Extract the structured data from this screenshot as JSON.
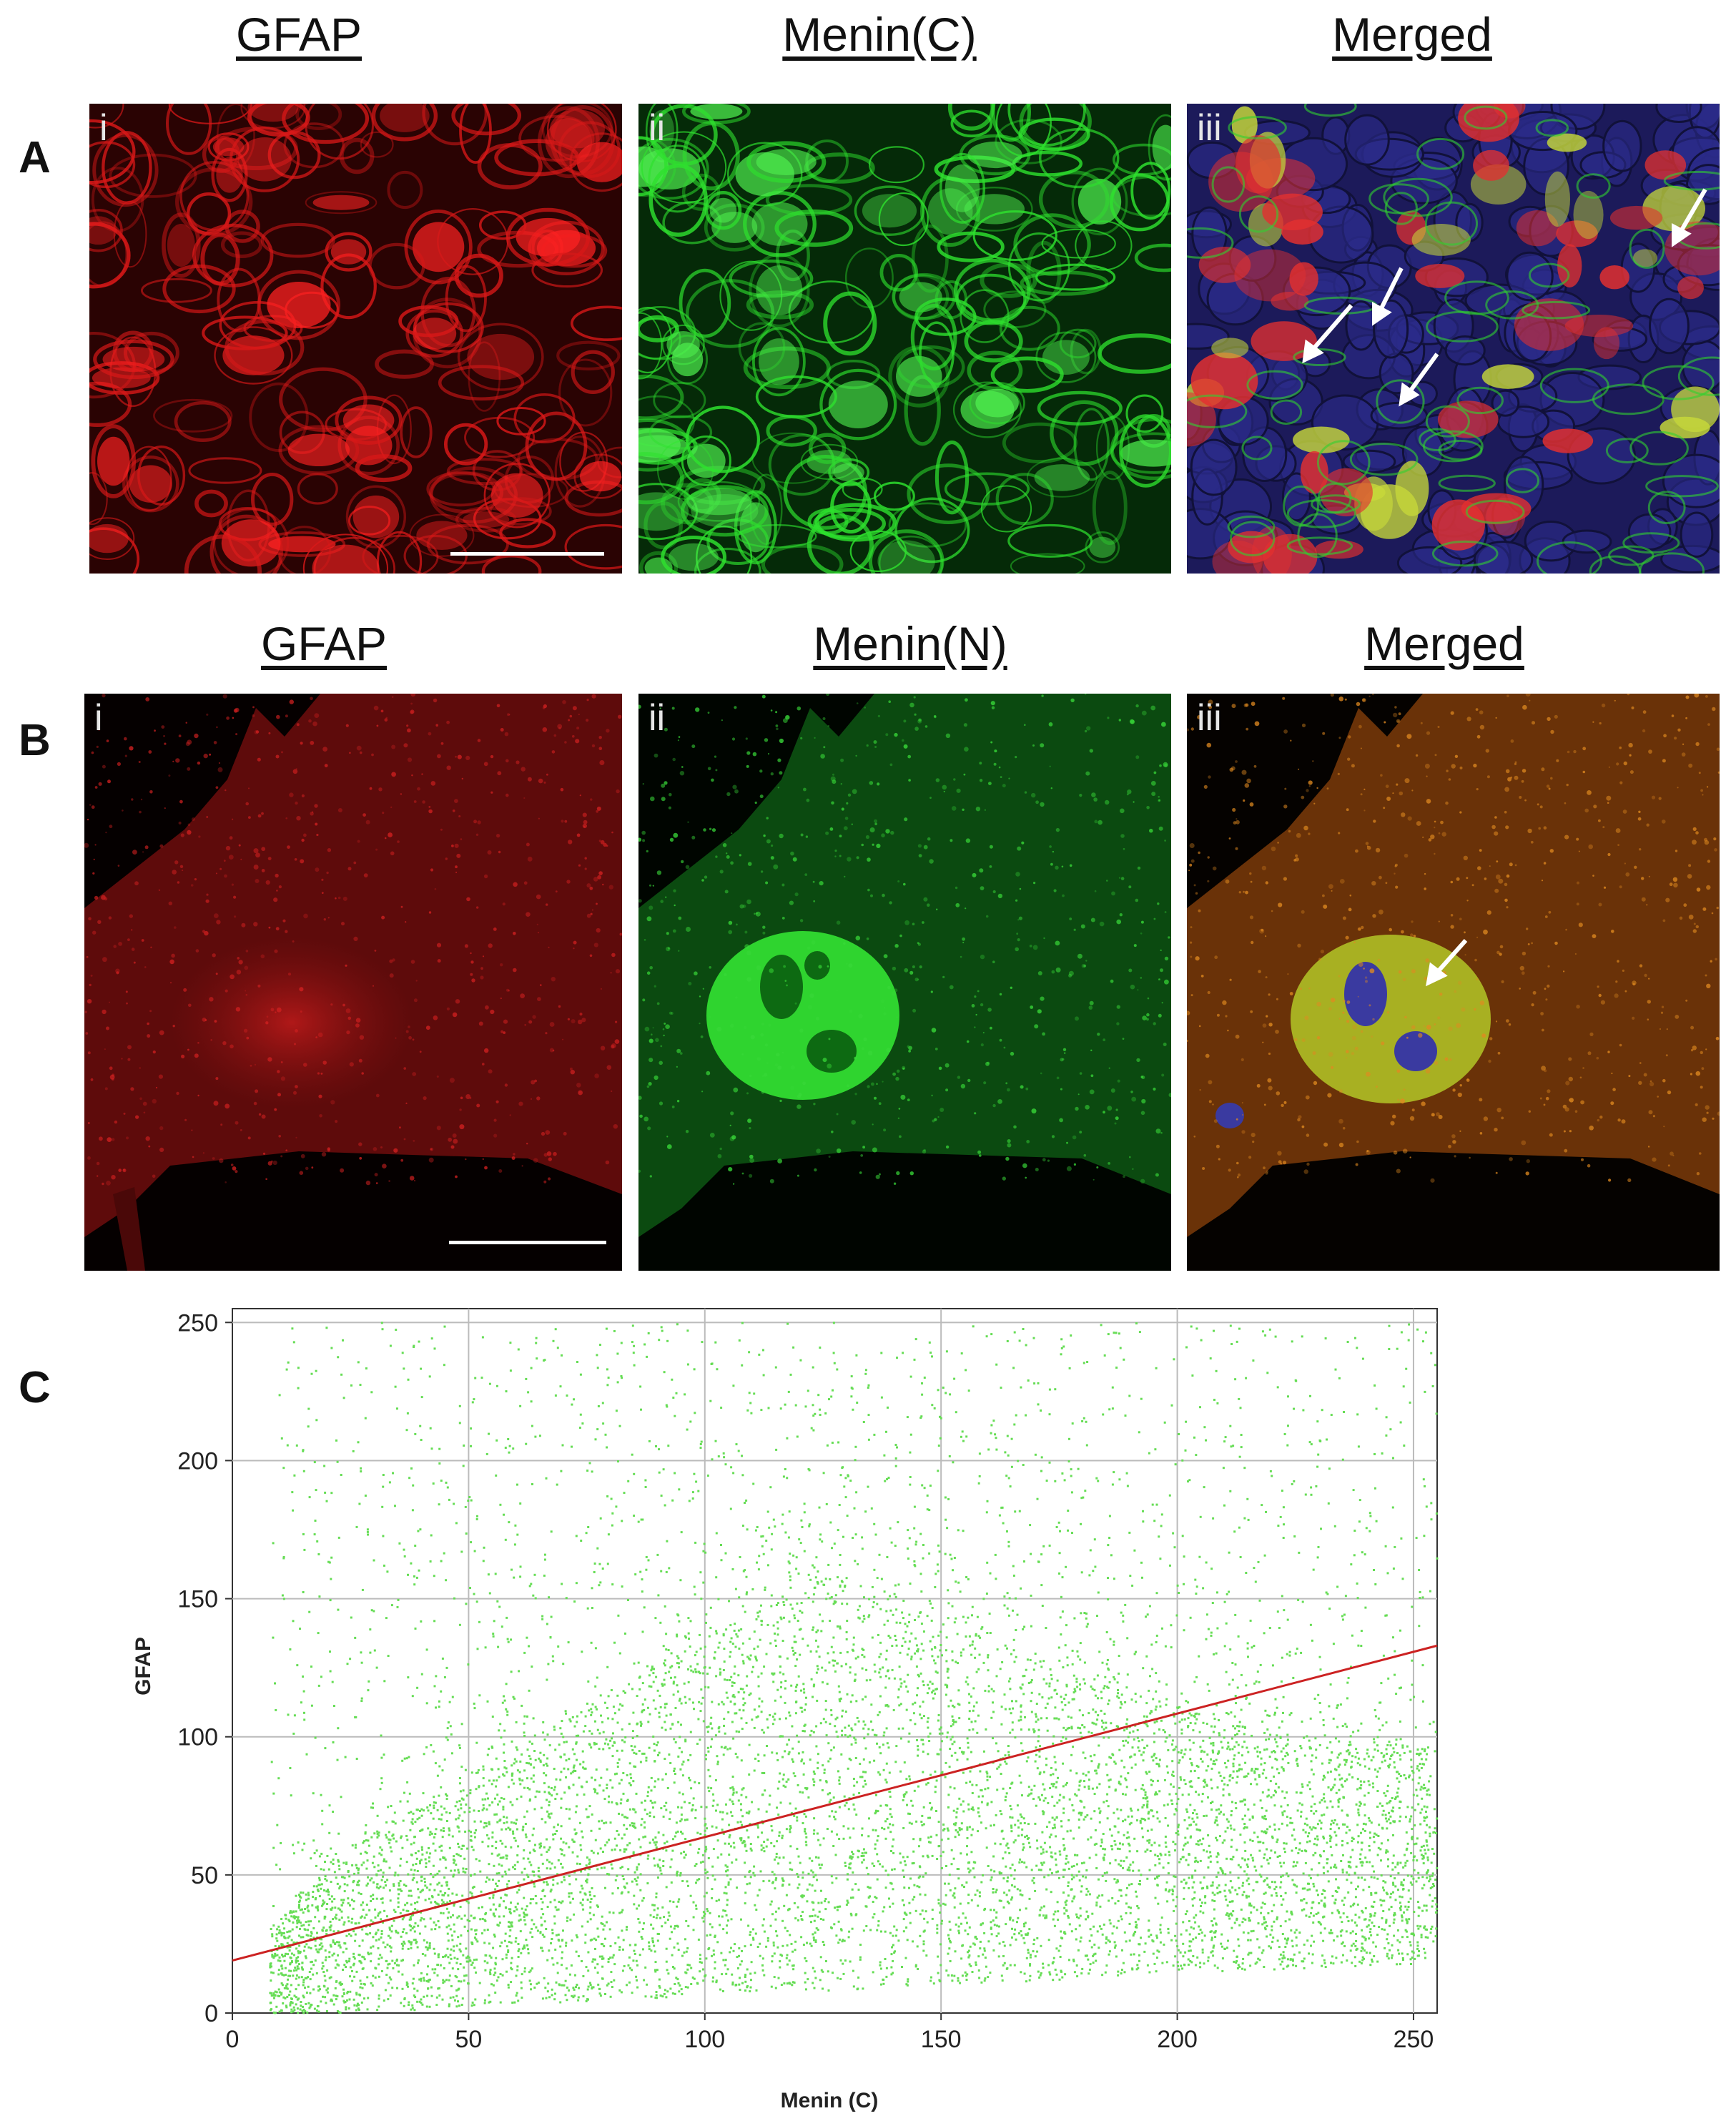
{
  "row_a": {
    "label": "A",
    "titles": [
      "GFAP",
      "Menin(C)",
      "Merged"
    ],
    "panel_labels": [
      "i",
      "ii",
      "iii"
    ]
  },
  "row_b": {
    "label": "B",
    "titles": [
      "GFAP",
      "Menin(N)",
      "Merged"
    ],
    "panel_labels": [
      "i",
      "ii",
      "iii"
    ]
  },
  "row_c": {
    "label": "C"
  },
  "colors": {
    "red_channel": "#ff1a1a",
    "green_channel": "#22dd22",
    "blue_channel": "#2a2aa8",
    "fit_line": "#cc2222",
    "scatter": "#66dd55"
  },
  "chart_data": {
    "type": "scatter",
    "xlabel": "Menin (C)",
    "ylabel": "GFAP",
    "xlim": [
      0,
      255
    ],
    "ylim": [
      0,
      255
    ],
    "xticks": [
      0,
      50,
      100,
      150,
      200,
      250
    ],
    "yticks": [
      0,
      50,
      100,
      150,
      200,
      250
    ],
    "grid": true,
    "fit_line": {
      "x": [
        0,
        255
      ],
      "y": [
        19,
        133
      ]
    },
    "density_envelope": {
      "description_points_x": [
        8,
        25,
        50,
        75,
        100,
        125,
        150,
        175,
        200,
        225,
        255
      ],
      "upper_dense_y": [
        30,
        60,
        85,
        110,
        135,
        155,
        140,
        125,
        110,
        100,
        95
      ],
      "lower_dense_y": [
        0,
        0,
        2,
        4,
        6,
        8,
        10,
        12,
        14,
        16,
        18
      ]
    }
  }
}
